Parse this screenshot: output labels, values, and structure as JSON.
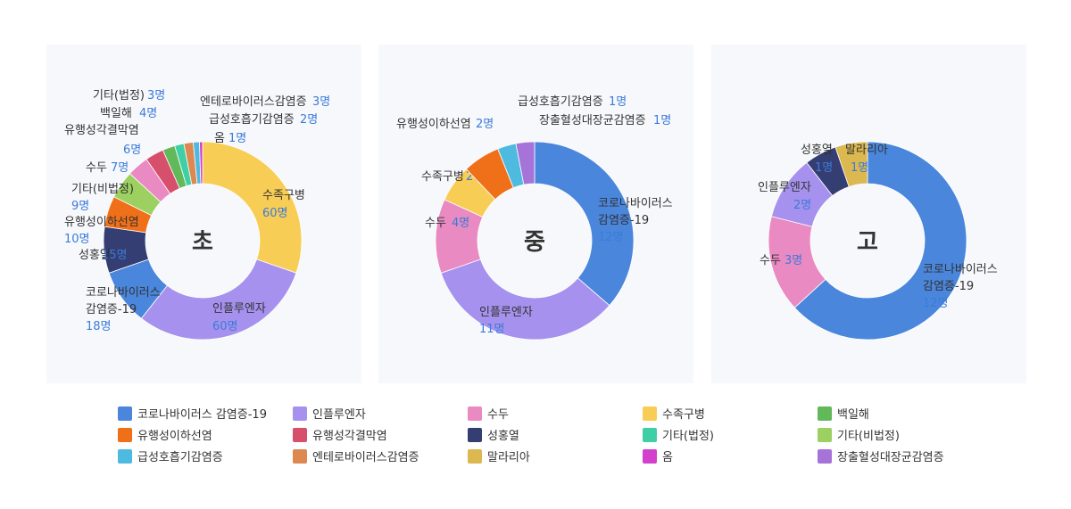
{
  "legend": [
    {
      "name": "코로나바이러스 감염증-19",
      "color": "#4a86dc"
    },
    {
      "name": "인플루엔자",
      "color": "#a692ee"
    },
    {
      "name": "수두",
      "color": "#e98ac2"
    },
    {
      "name": "수족구병",
      "color": "#f8cd55"
    },
    {
      "name": "백일해",
      "color": "#61b95a"
    },
    {
      "name": "유행성이하선염",
      "color": "#f0701a"
    },
    {
      "name": "유행성각결막염",
      "color": "#d6506c"
    },
    {
      "name": "성홍열",
      "color": "#343e72"
    },
    {
      "name": "기타(법정)",
      "color": "#3fcfa6"
    },
    {
      "name": "기타(비법정)",
      "color": "#9cd061"
    },
    {
      "name": "급성호흡기감염증",
      "color": "#4ebadf"
    },
    {
      "name": "엔테로바이러스감염증",
      "color": "#dd8850"
    },
    {
      "name": "말라리아",
      "color": "#dbb850"
    },
    {
      "name": "옴",
      "color": "#d340cc"
    },
    {
      "name": "장출혈성대장균감염증",
      "color": "#a674d8"
    }
  ],
  "chart_data": [
    {
      "type": "pie",
      "title": "초",
      "slices": [
        {
          "name": "수족구병",
          "value": 60,
          "label": "60명",
          "color": "#f8cd55"
        },
        {
          "name": "인플루엔자",
          "value": 60,
          "label": "60명",
          "color": "#a692ee"
        },
        {
          "name": "코로나바이러스 감염증-19",
          "value": 18,
          "label": "18명",
          "color": "#4a86dc"
        },
        {
          "name": "성홍열",
          "value": 15,
          "label": "15명",
          "color": "#343e72"
        },
        {
          "name": "유행성이하선염",
          "value": 10,
          "label": "10명",
          "color": "#f0701a"
        },
        {
          "name": "기타(비법정)",
          "value": 9,
          "label": "9명",
          "color": "#9cd061"
        },
        {
          "name": "수두",
          "value": 7,
          "label": "7명",
          "color": "#e98ac2"
        },
        {
          "name": "유행성각결막염",
          "value": 6,
          "label": "6명",
          "color": "#d6506c"
        },
        {
          "name": "백일해",
          "value": 4,
          "label": "4명",
          "color": "#61b95a"
        },
        {
          "name": "기타(법정)",
          "value": 3,
          "label": "3명",
          "color": "#3fcfa6"
        },
        {
          "name": "엔테로바이러스감염증",
          "value": 3,
          "label": "3명",
          "color": "#dd8850"
        },
        {
          "name": "급성호흡기감염증",
          "value": 2,
          "label": "2명",
          "color": "#4ebadf"
        },
        {
          "name": "옴",
          "value": 1,
          "label": "1명",
          "color": "#d340cc"
        }
      ]
    },
    {
      "type": "pie",
      "title": "중",
      "slices": [
        {
          "name": "코로나바이러스 감염증-19",
          "value": 12,
          "label": "12명",
          "color": "#4a86dc"
        },
        {
          "name": "인플루엔자",
          "value": 11,
          "label": "11명",
          "color": "#a692ee"
        },
        {
          "name": "수두",
          "value": 4,
          "label": "4명",
          "color": "#e98ac2"
        },
        {
          "name": "수족구병",
          "value": 2,
          "label": "2명",
          "color": "#f8cd55"
        },
        {
          "name": "유행성이하선염",
          "value": 2,
          "label": "2명",
          "color": "#f0701a"
        },
        {
          "name": "급성호흡기감염증",
          "value": 1,
          "label": "1명",
          "color": "#4ebadf"
        },
        {
          "name": "장출혈성대장균감염증",
          "value": 1,
          "label": "1명",
          "color": "#a674d8"
        }
      ]
    },
    {
      "type": "pie",
      "title": "고",
      "slices": [
        {
          "name": "코로나바이러스 감염증-19",
          "value": 12,
          "label": "12명",
          "color": "#4a86dc"
        },
        {
          "name": "수두",
          "value": 3,
          "label": "3명",
          "color": "#e98ac2"
        },
        {
          "name": "인플루엔자",
          "value": 2,
          "label": "2명",
          "color": "#a692ee"
        },
        {
          "name": "성홍열",
          "value": 1,
          "label": "1명",
          "color": "#343e72"
        },
        {
          "name": "말라리아",
          "value": 1,
          "label": "1명",
          "color": "#dbb850"
        }
      ]
    }
  ]
}
